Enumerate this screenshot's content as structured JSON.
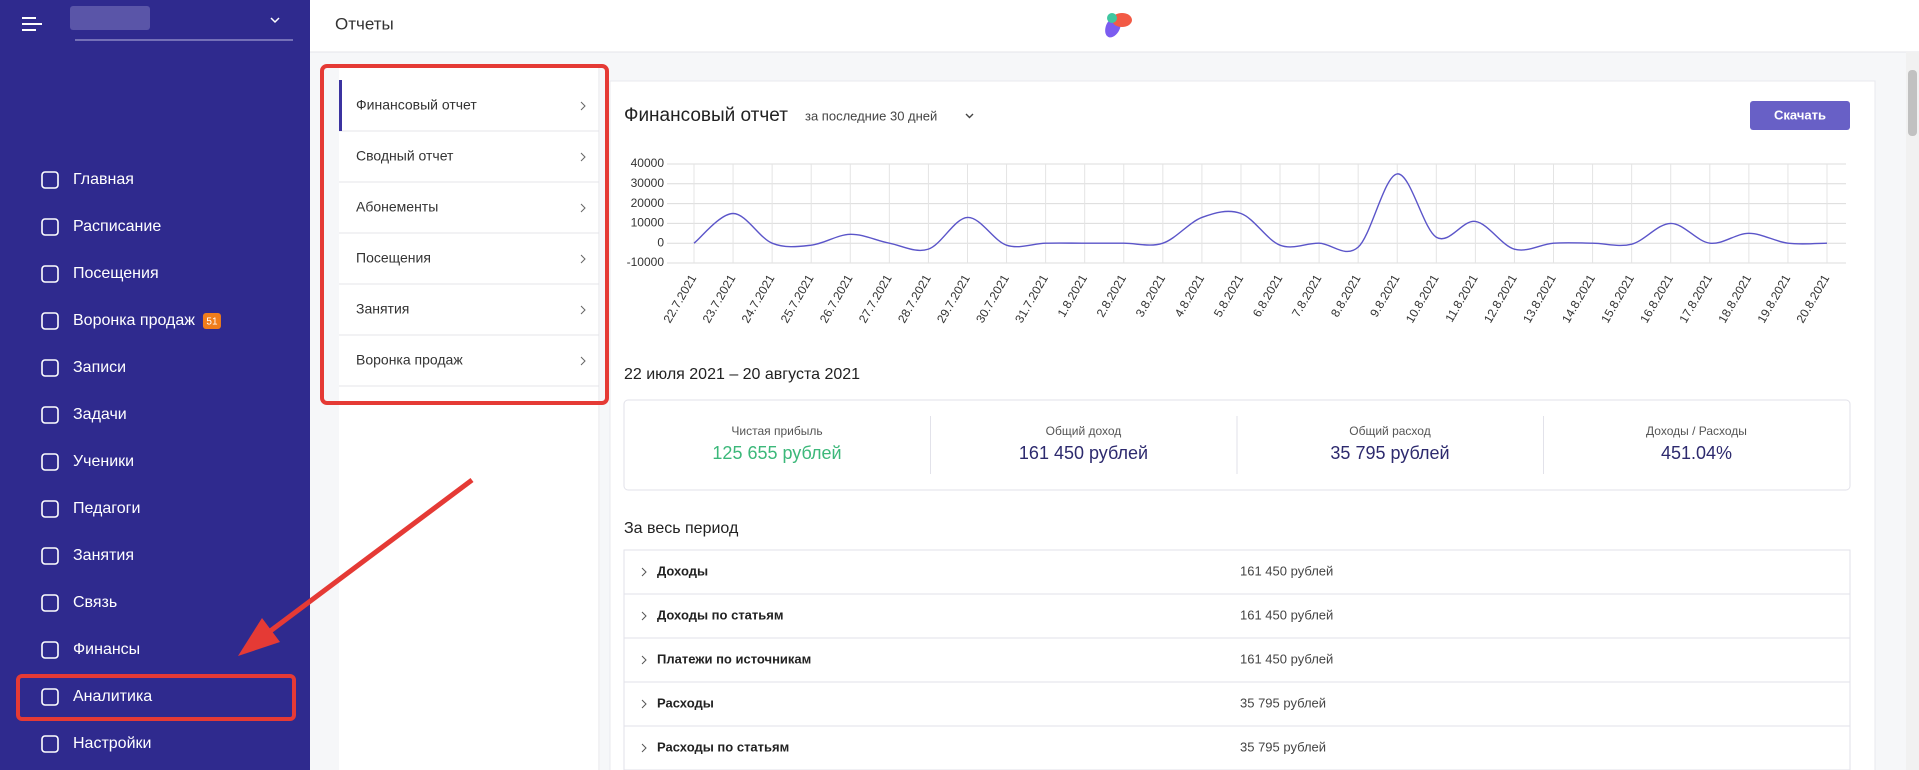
{
  "header": {
    "title": "Отчеты"
  },
  "sidebar": {
    "nav": [
      {
        "label": "Главная"
      },
      {
        "label": "Расписание"
      },
      {
        "label": "Посещения"
      },
      {
        "label": "Воронка продаж",
        "badge": "51"
      },
      {
        "label": "Записи"
      },
      {
        "label": "Задачи"
      },
      {
        "label": "Ученики"
      },
      {
        "label": "Педагоги"
      },
      {
        "label": "Занятия"
      },
      {
        "label": "Связь"
      },
      {
        "label": "Финансы"
      },
      {
        "label": "Аналитика"
      },
      {
        "label": "Настройки"
      }
    ]
  },
  "report_menu": [
    "Финансовый отчет",
    "Сводный отчет",
    "Абонементы",
    "Посещения",
    "Занятия",
    "Воронка продаж"
  ],
  "chart_data": {
    "type": "line",
    "title": "Финансовый отчет",
    "period": "за последние 30 дней",
    "button": "Скачать",
    "categories": [
      "22.7.2021",
      "23.7.2021",
      "24.7.2021",
      "25.7.2021",
      "26.7.2021",
      "27.7.2021",
      "28.7.2021",
      "29.7.2021",
      "30.7.2021",
      "31.7.2021",
      "1.8.2021",
      "2.8.2021",
      "3.8.2021",
      "4.8.2021",
      "5.8.2021",
      "6.8.2021",
      "7.8.2021",
      "8.8.2021",
      "9.8.2021",
      "10.8.2021",
      "11.8.2021",
      "12.8.2021",
      "13.8.2021",
      "14.8.2021",
      "15.8.2021",
      "16.8.2021",
      "17.8.2021",
      "18.8.2021",
      "19.8.2021",
      "20.8.2021"
    ],
    "values": [
      0,
      15000,
      0,
      -1000,
      4500,
      0,
      -3000,
      13000,
      -1000,
      0,
      0,
      0,
      0,
      13000,
      15000,
      -1000,
      0,
      -2000,
      35000,
      3000,
      11000,
      -3000,
      0,
      0,
      -500,
      10000,
      0,
      5000,
      0,
      0
    ],
    "color": "#5b55c9",
    "ylim": [
      -10000,
      40000
    ],
    "yticks": [
      -10000,
      0,
      10000,
      20000,
      30000,
      40000
    ],
    "grid": true
  },
  "summary": {
    "date_range": "22 июля 2021 – 20 августа 2021",
    "stats": [
      {
        "label": "Чистая прибыль",
        "value": "125 655 рублей"
      },
      {
        "label": "Общий доход",
        "value": "161 450 рублей"
      },
      {
        "label": "Общий расход",
        "value": "35 795 рублей"
      },
      {
        "label": "Доходы / Расходы",
        "value": "451.04%"
      }
    ]
  },
  "period_table": {
    "title": "За весь период",
    "rows": [
      [
        "Доходы",
        "161 450 рублей"
      ],
      [
        "Доходы по статьям",
        "161 450 рублей"
      ],
      [
        "Платежи по источникам",
        "161 450 рублей"
      ],
      [
        "Расходы",
        "35 795 рублей"
      ],
      [
        "Расходы по статьям",
        "35 795 рублей"
      ]
    ]
  }
}
